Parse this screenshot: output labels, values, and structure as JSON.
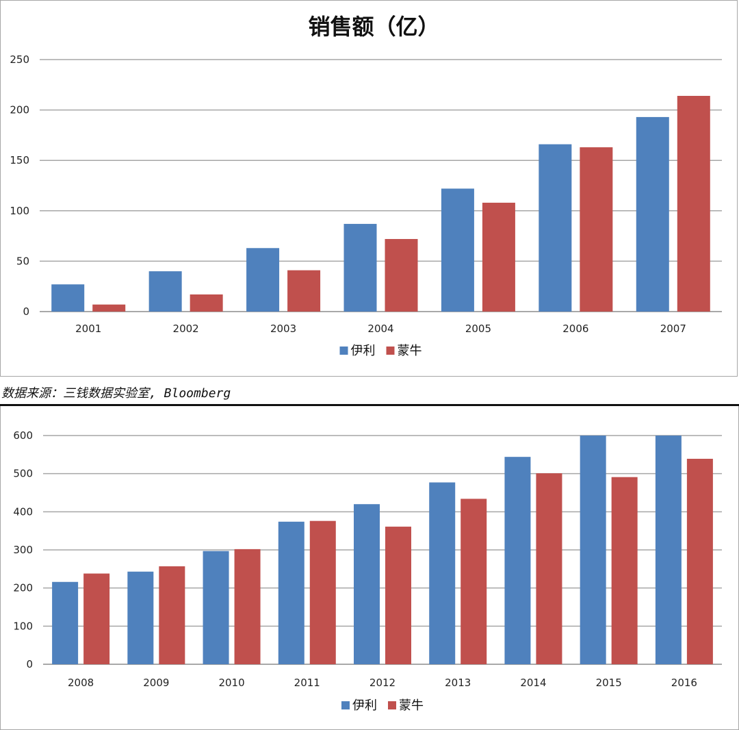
{
  "source_note": "数据来源：三钱数据实验室, Bloomberg",
  "chart_data": [
    {
      "type": "bar",
      "title": "销售额（亿）",
      "categories": [
        "2001",
        "2002",
        "2003",
        "2004",
        "2005",
        "2006",
        "2007"
      ],
      "series": [
        {
          "name": "伊利",
          "color": "#4f81bd",
          "values": [
            27,
            40,
            63,
            87,
            122,
            166,
            193
          ]
        },
        {
          "name": "蒙牛",
          "color": "#c0504d",
          "values": [
            7,
            17,
            41,
            72,
            108,
            163,
            214
          ]
        }
      ],
      "ylim": [
        0,
        250
      ],
      "yticks": [
        "0",
        "50",
        "100",
        "150",
        "200",
        "250"
      ],
      "grid": true,
      "legend": "bottom"
    },
    {
      "type": "bar",
      "title": "",
      "categories": [
        "2008",
        "2009",
        "2010",
        "2011",
        "2012",
        "2013",
        "2014",
        "2015",
        "2016"
      ],
      "series": [
        {
          "name": "伊利",
          "color": "#4f81bd",
          "values": [
            216,
            243,
            297,
            374,
            420,
            477,
            544,
            600,
            600
          ]
        },
        {
          "name": "蒙牛",
          "color": "#c0504d",
          "values": [
            238,
            257,
            302,
            376,
            361,
            434,
            501,
            491,
            539
          ]
        }
      ],
      "ylim": [
        0,
        600
      ],
      "yticks": [
        "0",
        "100",
        "200",
        "300",
        "400",
        "500",
        "600"
      ],
      "grid": true,
      "legend": "bottom"
    }
  ]
}
